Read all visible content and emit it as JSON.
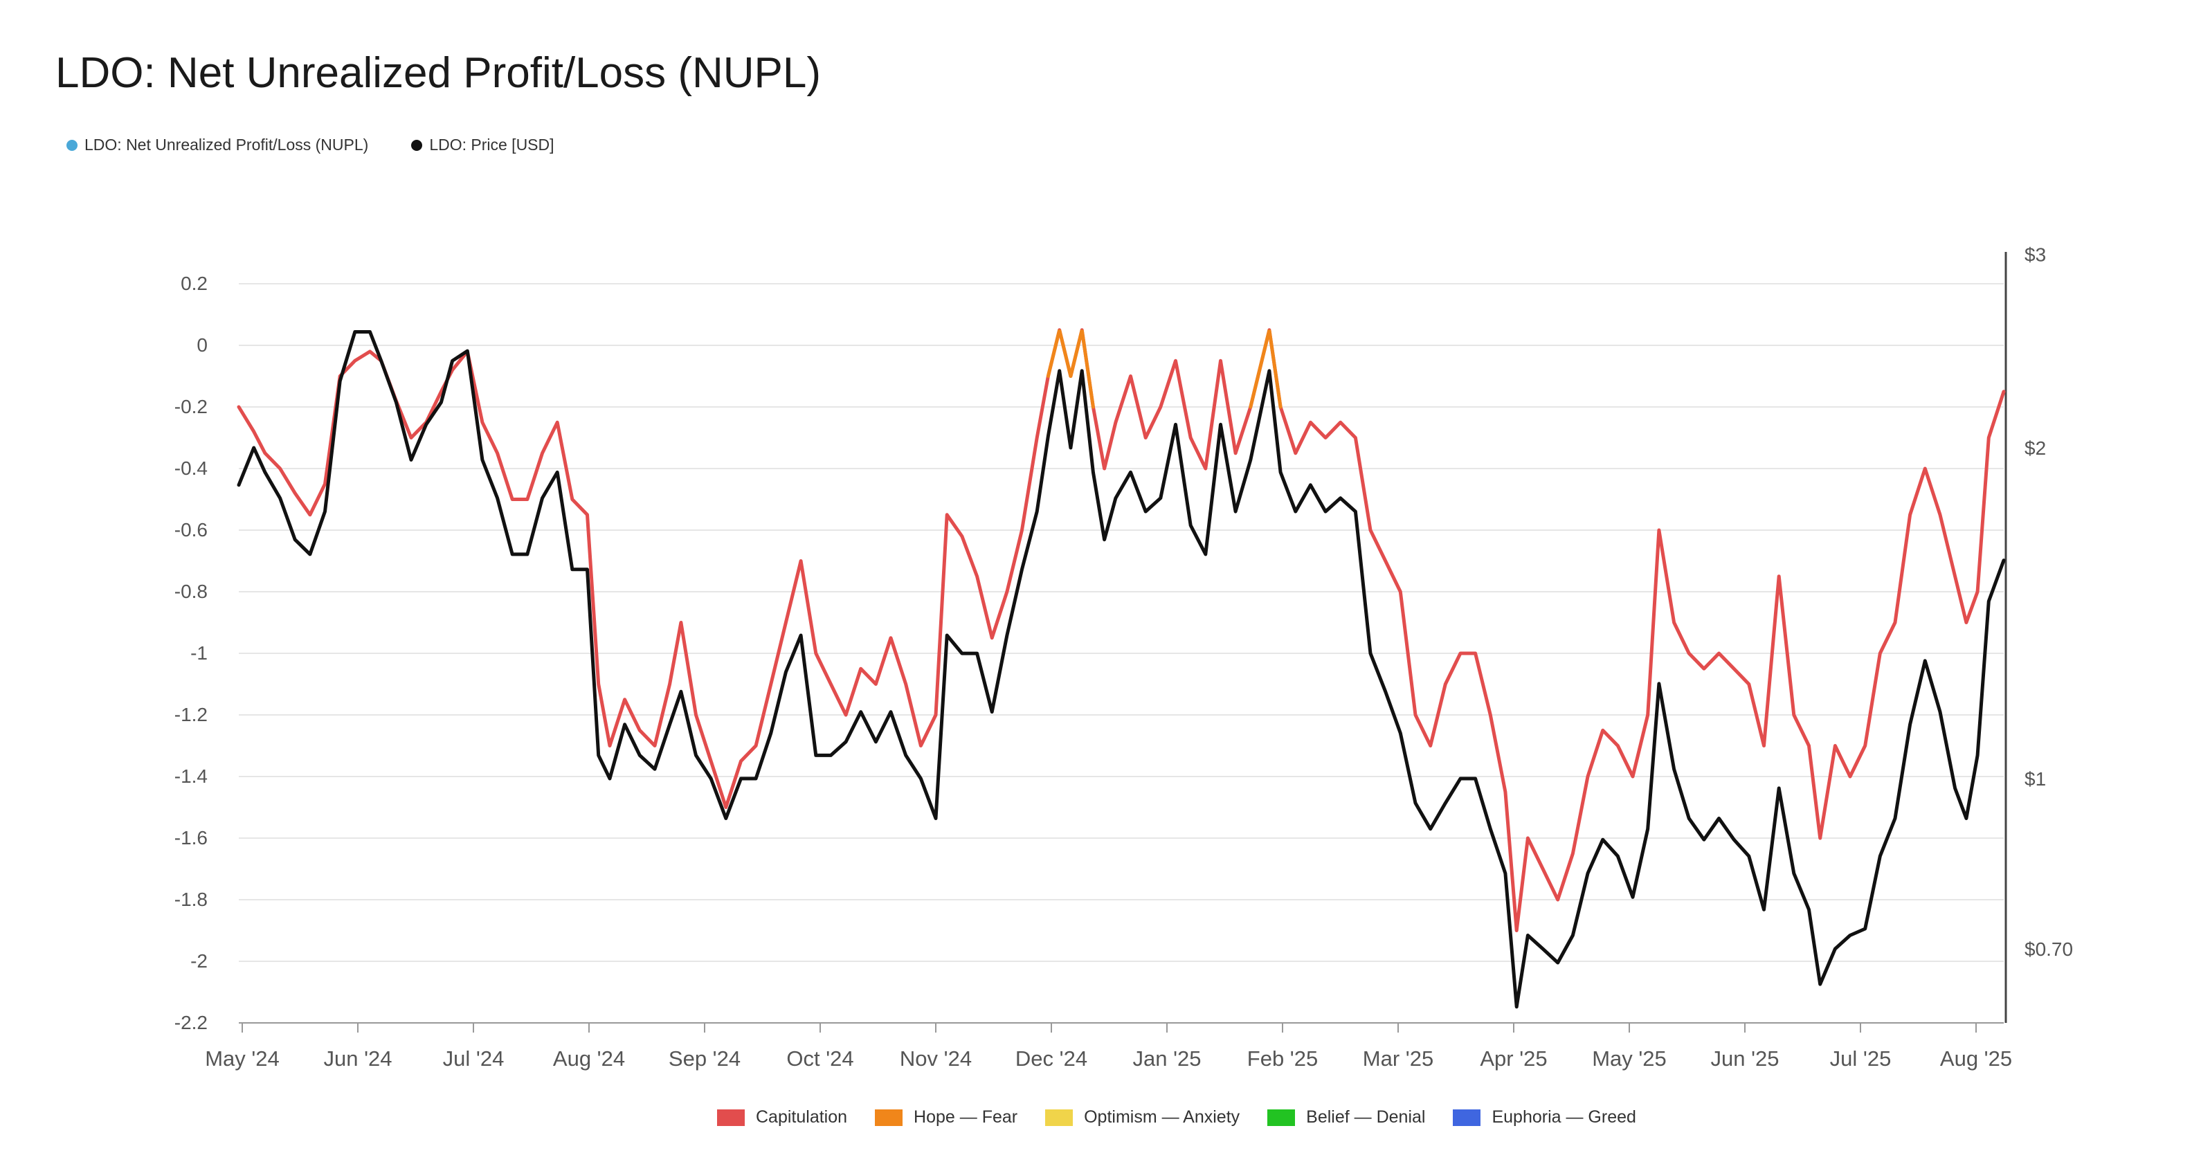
{
  "title": "LDO: Net Unrealized Profit/Loss (NUPL)",
  "legend_top": [
    {
      "label": "LDO: Net Unrealized Profit/Loss (NUPL)",
      "color": "#4aa8d8"
    },
    {
      "label": "LDO: Price [USD]",
      "color": "#111111"
    }
  ],
  "legend_bottom": [
    {
      "label": "Capitulation",
      "color": "#e24d4d"
    },
    {
      "label": "Hope — Fear",
      "color": "#f0861a"
    },
    {
      "label": "Optimism — Anxiety",
      "color": "#f0d44a"
    },
    {
      "label": "Belief — Denial",
      "color": "#22c322"
    },
    {
      "label": "Euphoria — Greed",
      "color": "#3f66e0"
    }
  ],
  "chart_data": {
    "type": "line",
    "title": "LDO: Net Unrealized Profit/Loss (NUPL)",
    "x_tick_labels": [
      "May '24",
      "Jun '24",
      "Jul '24",
      "Aug '24",
      "Sep '24",
      "Oct '24",
      "Nov '24",
      "Dec '24",
      "Jan '25",
      "Feb '25",
      "Mar '25",
      "Apr '25",
      "May '25",
      "Jun '25",
      "Jul '25",
      "Aug '25"
    ],
    "y_left_ticks": [
      "0.2",
      "0",
      "-0.2",
      "-0.4",
      "-0.6",
      "-0.8",
      "-1",
      "-1.2",
      "-1.4",
      "-1.6",
      "-1.8",
      "-2",
      "-2.2"
    ],
    "y_left_range": [
      -2.2,
      0.2
    ],
    "y_right_ticks": [
      "$3",
      "$2",
      "$1",
      "$0.70"
    ],
    "y_right_scale": "log",
    "x_range": [
      "2024-05-01",
      "2025-08-15"
    ],
    "grid": true,
    "series": [
      {
        "name": "LDO: Net Unrealized Profit/Loss (NUPL)",
        "axis": "left",
        "color": "#e24d4d",
        "peak_color": "#f0861a",
        "points": [
          [
            "2024-05-01",
            -0.2
          ],
          [
            "2024-05-05",
            -0.28
          ],
          [
            "2024-05-08",
            -0.35
          ],
          [
            "2024-05-12",
            -0.4
          ],
          [
            "2024-05-16",
            -0.48
          ],
          [
            "2024-05-20",
            -0.55
          ],
          [
            "2024-05-24",
            -0.45
          ],
          [
            "2024-05-28",
            -0.1
          ],
          [
            "2024-06-01",
            -0.05
          ],
          [
            "2024-06-05",
            -0.02
          ],
          [
            "2024-06-08",
            -0.05
          ],
          [
            "2024-06-12",
            -0.18
          ],
          [
            "2024-06-16",
            -0.3
          ],
          [
            "2024-06-20",
            -0.25
          ],
          [
            "2024-06-24",
            -0.15
          ],
          [
            "2024-06-27",
            -0.08
          ],
          [
            "2024-07-01",
            -0.02
          ],
          [
            "2024-07-05",
            -0.25
          ],
          [
            "2024-07-09",
            -0.35
          ],
          [
            "2024-07-13",
            -0.5
          ],
          [
            "2024-07-17",
            -0.5
          ],
          [
            "2024-07-21",
            -0.35
          ],
          [
            "2024-07-25",
            -0.25
          ],
          [
            "2024-07-29",
            -0.5
          ],
          [
            "2024-08-02",
            -0.55
          ],
          [
            "2024-08-05",
            -1.1
          ],
          [
            "2024-08-08",
            -1.3
          ],
          [
            "2024-08-12",
            -1.15
          ],
          [
            "2024-08-16",
            -1.25
          ],
          [
            "2024-08-20",
            -1.3
          ],
          [
            "2024-08-24",
            -1.1
          ],
          [
            "2024-08-27",
            -0.9
          ],
          [
            "2024-08-31",
            -1.2
          ],
          [
            "2024-09-04",
            -1.35
          ],
          [
            "2024-09-08",
            -1.5
          ],
          [
            "2024-09-12",
            -1.35
          ],
          [
            "2024-09-16",
            -1.3
          ],
          [
            "2024-09-20",
            -1.1
          ],
          [
            "2024-09-24",
            -0.9
          ],
          [
            "2024-09-28",
            -0.7
          ],
          [
            "2024-10-02",
            -1.0
          ],
          [
            "2024-10-06",
            -1.1
          ],
          [
            "2024-10-10",
            -1.2
          ],
          [
            "2024-10-14",
            -1.05
          ],
          [
            "2024-10-18",
            -1.1
          ],
          [
            "2024-10-22",
            -0.95
          ],
          [
            "2024-10-26",
            -1.1
          ],
          [
            "2024-10-30",
            -1.3
          ],
          [
            "2024-11-03",
            -1.2
          ],
          [
            "2024-11-06",
            -0.55
          ],
          [
            "2024-11-10",
            -0.62
          ],
          [
            "2024-11-14",
            -0.75
          ],
          [
            "2024-11-18",
            -0.95
          ],
          [
            "2024-11-22",
            -0.8
          ],
          [
            "2024-11-26",
            -0.6
          ],
          [
            "2024-11-30",
            -0.3
          ],
          [
            "2024-12-03",
            -0.1
          ],
          [
            "2024-12-06",
            0.05
          ],
          [
            "2024-12-09",
            -0.1
          ],
          [
            "2024-12-12",
            0.05
          ],
          [
            "2024-12-15",
            -0.2
          ],
          [
            "2024-12-18",
            -0.4
          ],
          [
            "2024-12-21",
            -0.25
          ],
          [
            "2024-12-25",
            -0.1
          ],
          [
            "2024-12-29",
            -0.3
          ],
          [
            "2025-01-02",
            -0.2
          ],
          [
            "2025-01-06",
            -0.05
          ],
          [
            "2025-01-10",
            -0.3
          ],
          [
            "2025-01-14",
            -0.4
          ],
          [
            "2025-01-18",
            -0.05
          ],
          [
            "2025-01-22",
            -0.35
          ],
          [
            "2025-01-26",
            -0.2
          ],
          [
            "2025-01-31",
            0.05
          ],
          [
            "2025-02-03",
            -0.2
          ],
          [
            "2025-02-07",
            -0.35
          ],
          [
            "2025-02-11",
            -0.25
          ],
          [
            "2025-02-15",
            -0.3
          ],
          [
            "2025-02-19",
            -0.25
          ],
          [
            "2025-02-23",
            -0.3
          ],
          [
            "2025-02-27",
            -0.6
          ],
          [
            "2025-03-03",
            -0.7
          ],
          [
            "2025-03-07",
            -0.8
          ],
          [
            "2025-03-11",
            -1.2
          ],
          [
            "2025-03-15",
            -1.3
          ],
          [
            "2025-03-19",
            -1.1
          ],
          [
            "2025-03-23",
            -1.0
          ],
          [
            "2025-03-27",
            -1.0
          ],
          [
            "2025-03-31",
            -1.2
          ],
          [
            "2025-04-04",
            -1.45
          ],
          [
            "2025-04-07",
            -1.9
          ],
          [
            "2025-04-10",
            -1.6
          ],
          [
            "2025-04-14",
            -1.7
          ],
          [
            "2025-04-18",
            -1.8
          ],
          [
            "2025-04-22",
            -1.65
          ],
          [
            "2025-04-26",
            -1.4
          ],
          [
            "2025-04-30",
            -1.25
          ],
          [
            "2025-05-04",
            -1.3
          ],
          [
            "2025-05-08",
            -1.4
          ],
          [
            "2025-05-12",
            -1.2
          ],
          [
            "2025-05-15",
            -0.6
          ],
          [
            "2025-05-19",
            -0.9
          ],
          [
            "2025-05-23",
            -1.0
          ],
          [
            "2025-05-27",
            -1.05
          ],
          [
            "2025-05-31",
            -1.0
          ],
          [
            "2025-06-04",
            -1.05
          ],
          [
            "2025-06-08",
            -1.1
          ],
          [
            "2025-06-12",
            -1.3
          ],
          [
            "2025-06-16",
            -0.75
          ],
          [
            "2025-06-20",
            -1.2
          ],
          [
            "2025-06-24",
            -1.3
          ],
          [
            "2025-06-27",
            -1.6
          ],
          [
            "2025-07-01",
            -1.3
          ],
          [
            "2025-07-05",
            -1.4
          ],
          [
            "2025-07-09",
            -1.3
          ],
          [
            "2025-07-13",
            -1.0
          ],
          [
            "2025-07-17",
            -0.9
          ],
          [
            "2025-07-21",
            -0.55
          ],
          [
            "2025-07-25",
            -0.4
          ],
          [
            "2025-07-29",
            -0.55
          ],
          [
            "2025-08-02",
            -0.75
          ],
          [
            "2025-08-05",
            -0.9
          ],
          [
            "2025-08-08",
            -0.8
          ],
          [
            "2025-08-11",
            -0.3
          ],
          [
            "2025-08-15",
            -0.15
          ]
        ]
      },
      {
        "name": "LDO: Price [USD]",
        "axis": "right",
        "color": "#111111",
        "points": [
          [
            "2024-05-01",
            1.85
          ],
          [
            "2024-05-05",
            2.0
          ],
          [
            "2024-05-08",
            1.9
          ],
          [
            "2024-05-12",
            1.8
          ],
          [
            "2024-05-16",
            1.65
          ],
          [
            "2024-05-20",
            1.6
          ],
          [
            "2024-05-24",
            1.75
          ],
          [
            "2024-05-28",
            2.3
          ],
          [
            "2024-06-01",
            2.55
          ],
          [
            "2024-06-05",
            2.55
          ],
          [
            "2024-06-08",
            2.4
          ],
          [
            "2024-06-12",
            2.2
          ],
          [
            "2024-06-16",
            1.95
          ],
          [
            "2024-06-20",
            2.1
          ],
          [
            "2024-06-24",
            2.2
          ],
          [
            "2024-06-27",
            2.4
          ],
          [
            "2024-07-01",
            2.45
          ],
          [
            "2024-07-05",
            1.95
          ],
          [
            "2024-07-09",
            1.8
          ],
          [
            "2024-07-13",
            1.6
          ],
          [
            "2024-07-17",
            1.6
          ],
          [
            "2024-07-21",
            1.8
          ],
          [
            "2024-07-25",
            1.9
          ],
          [
            "2024-07-29",
            1.55
          ],
          [
            "2024-08-02",
            1.55
          ],
          [
            "2024-08-05",
            1.05
          ],
          [
            "2024-08-08",
            1.0
          ],
          [
            "2024-08-12",
            1.12
          ],
          [
            "2024-08-16",
            1.05
          ],
          [
            "2024-08-20",
            1.02
          ],
          [
            "2024-08-24",
            1.12
          ],
          [
            "2024-08-27",
            1.2
          ],
          [
            "2024-08-31",
            1.05
          ],
          [
            "2024-09-04",
            1.0
          ],
          [
            "2024-09-08",
            0.92
          ],
          [
            "2024-09-12",
            1.0
          ],
          [
            "2024-09-16",
            1.0
          ],
          [
            "2024-09-20",
            1.1
          ],
          [
            "2024-09-24",
            1.25
          ],
          [
            "2024-09-28",
            1.35
          ],
          [
            "2024-10-02",
            1.05
          ],
          [
            "2024-10-06",
            1.05
          ],
          [
            "2024-10-10",
            1.08
          ],
          [
            "2024-10-14",
            1.15
          ],
          [
            "2024-10-18",
            1.08
          ],
          [
            "2024-10-22",
            1.15
          ],
          [
            "2024-10-26",
            1.05
          ],
          [
            "2024-10-30",
            1.0
          ],
          [
            "2024-11-03",
            0.92
          ],
          [
            "2024-11-06",
            1.35
          ],
          [
            "2024-11-10",
            1.3
          ],
          [
            "2024-11-14",
            1.3
          ],
          [
            "2024-11-18",
            1.15
          ],
          [
            "2024-11-22",
            1.35
          ],
          [
            "2024-11-26",
            1.55
          ],
          [
            "2024-11-30",
            1.75
          ],
          [
            "2024-12-03",
            2.05
          ],
          [
            "2024-12-06",
            2.35
          ],
          [
            "2024-12-09",
            2.0
          ],
          [
            "2024-12-12",
            2.35
          ],
          [
            "2024-12-15",
            1.9
          ],
          [
            "2024-12-18",
            1.65
          ],
          [
            "2024-12-21",
            1.8
          ],
          [
            "2024-12-25",
            1.9
          ],
          [
            "2024-12-29",
            1.75
          ],
          [
            "2025-01-02",
            1.8
          ],
          [
            "2025-01-06",
            2.1
          ],
          [
            "2025-01-10",
            1.7
          ],
          [
            "2025-01-14",
            1.6
          ],
          [
            "2025-01-18",
            2.1
          ],
          [
            "2025-01-22",
            1.75
          ],
          [
            "2025-01-26",
            1.95
          ],
          [
            "2025-01-31",
            2.35
          ],
          [
            "2025-02-03",
            1.9
          ],
          [
            "2025-02-07",
            1.75
          ],
          [
            "2025-02-11",
            1.85
          ],
          [
            "2025-02-15",
            1.75
          ],
          [
            "2025-02-19",
            1.8
          ],
          [
            "2025-02-23",
            1.75
          ],
          [
            "2025-02-27",
            1.3
          ],
          [
            "2025-03-03",
            1.2
          ],
          [
            "2025-03-07",
            1.1
          ],
          [
            "2025-03-11",
            0.95
          ],
          [
            "2025-03-15",
            0.9
          ],
          [
            "2025-03-19",
            0.95
          ],
          [
            "2025-03-23",
            1.0
          ],
          [
            "2025-03-27",
            1.0
          ],
          [
            "2025-03-31",
            0.9
          ],
          [
            "2025-04-04",
            0.82
          ],
          [
            "2025-04-07",
            0.62
          ],
          [
            "2025-04-10",
            0.72
          ],
          [
            "2025-04-14",
            0.7
          ],
          [
            "2025-04-18",
            0.68
          ],
          [
            "2025-04-22",
            0.72
          ],
          [
            "2025-04-26",
            0.82
          ],
          [
            "2025-04-30",
            0.88
          ],
          [
            "2025-05-04",
            0.85
          ],
          [
            "2025-05-08",
            0.78
          ],
          [
            "2025-05-12",
            0.9
          ],
          [
            "2025-05-15",
            1.22
          ],
          [
            "2025-05-19",
            1.02
          ],
          [
            "2025-05-23",
            0.92
          ],
          [
            "2025-05-27",
            0.88
          ],
          [
            "2025-05-31",
            0.92
          ],
          [
            "2025-06-04",
            0.88
          ],
          [
            "2025-06-08",
            0.85
          ],
          [
            "2025-06-12",
            0.76
          ],
          [
            "2025-06-16",
            0.98
          ],
          [
            "2025-06-20",
            0.82
          ],
          [
            "2025-06-24",
            0.76
          ],
          [
            "2025-06-27",
            0.65
          ],
          [
            "2025-07-01",
            0.7
          ],
          [
            "2025-07-05",
            0.72
          ],
          [
            "2025-07-09",
            0.73
          ],
          [
            "2025-07-13",
            0.85
          ],
          [
            "2025-07-17",
            0.92
          ],
          [
            "2025-07-21",
            1.12
          ],
          [
            "2025-07-25",
            1.28
          ],
          [
            "2025-07-29",
            1.15
          ],
          [
            "2025-08-02",
            0.98
          ],
          [
            "2025-08-05",
            0.92
          ],
          [
            "2025-08-08",
            1.05
          ],
          [
            "2025-08-11",
            1.45
          ],
          [
            "2025-08-15",
            1.58
          ]
        ]
      }
    ]
  }
}
